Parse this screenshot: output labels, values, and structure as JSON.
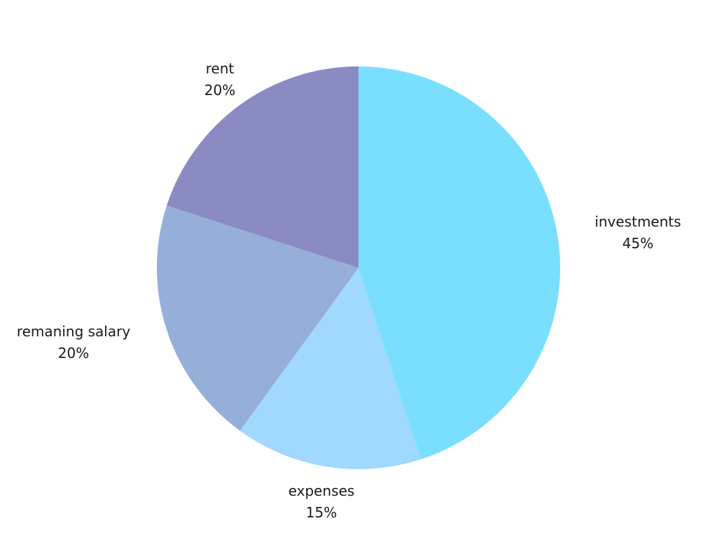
{
  "chart_data": {
    "type": "pie",
    "title": "",
    "legend": "none",
    "slices": [
      {
        "label": "investments",
        "value": 45,
        "value_label": "45%",
        "color": "#7adfff"
      },
      {
        "label": "expenses",
        "value": 15,
        "value_label": "15%",
        "color": "#a0d8fe"
      },
      {
        "label": "remaning salary",
        "value": 20,
        "value_label": "20%",
        "color": "#96afd9"
      },
      {
        "label": "rent",
        "value": 20,
        "value_label": "20%",
        "color": "#8a8bc2"
      }
    ]
  }
}
